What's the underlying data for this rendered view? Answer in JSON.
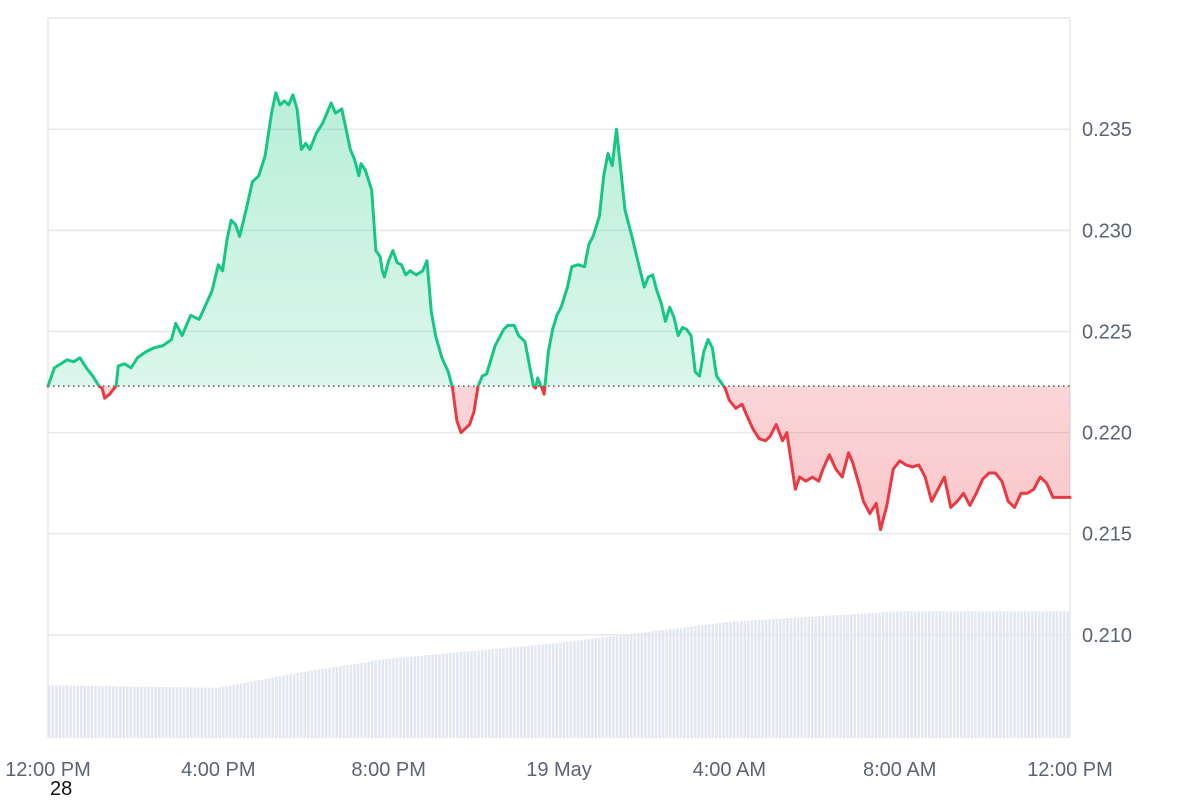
{
  "chart_data": {
    "type": "area",
    "title": "",
    "xlabel": "",
    "ylabel": "",
    "baseline": 0.2223,
    "ylim": [
      0.2049,
      0.2405
    ],
    "y_ticks": [
      0.235,
      0.23,
      0.225,
      0.22,
      0.215,
      0.21
    ],
    "y_tick_labels": [
      "0.235",
      "0.230",
      "0.225",
      "0.220",
      "0.215",
      "0.210"
    ],
    "x_range_hours": [
      0,
      24
    ],
    "x_ticks": [
      {
        "hour": 0,
        "label": "12:00 PM"
      },
      {
        "hour": 4,
        "label": "4:00 PM"
      },
      {
        "hour": 8,
        "label": "8:00 PM"
      },
      {
        "hour": 12,
        "label": "19 May"
      },
      {
        "hour": 16,
        "label": "4:00 AM"
      },
      {
        "hour": 20,
        "label": "8:00 AM"
      },
      {
        "hour": 24,
        "label": "12:00 PM"
      }
    ],
    "start_day_label": "28",
    "colors": {
      "up_line": "#16c784",
      "up_fill": "#16c784",
      "down_line": "#ea3943",
      "down_fill": "#ea3943",
      "baseline": "#555555",
      "grid": "#e6e8ec",
      "volume": "#e3e8ef"
    },
    "series": [
      {
        "values": [
          [
            0.0,
            0.2223
          ],
          [
            0.15,
            0.2232
          ],
          [
            0.3,
            0.2234
          ],
          [
            0.45,
            0.2236
          ],
          [
            0.6,
            0.2235
          ],
          [
            0.75,
            0.2237
          ],
          [
            0.9,
            0.2232
          ],
          [
            1.05,
            0.2228
          ],
          [
            1.2,
            0.2223
          ],
          [
            1.27,
            0.2222
          ],
          [
            1.33,
            0.2217
          ],
          [
            1.45,
            0.2219
          ],
          [
            1.52,
            0.2221
          ],
          [
            1.6,
            0.2223
          ],
          [
            1.65,
            0.2233
          ],
          [
            1.8,
            0.2234
          ],
          [
            1.95,
            0.2232
          ],
          [
            2.1,
            0.2237
          ],
          [
            2.3,
            0.224
          ],
          [
            2.5,
            0.2242
          ],
          [
            2.7,
            0.2243
          ],
          [
            2.9,
            0.2246
          ],
          [
            3.0,
            0.2254
          ],
          [
            3.15,
            0.2248
          ],
          [
            3.35,
            0.2258
          ],
          [
            3.55,
            0.2256
          ],
          [
            3.7,
            0.2263
          ],
          [
            3.85,
            0.227
          ],
          [
            4.0,
            0.2283
          ],
          [
            4.1,
            0.228
          ],
          [
            4.2,
            0.2295
          ],
          [
            4.3,
            0.2305
          ],
          [
            4.4,
            0.2303
          ],
          [
            4.5,
            0.2297
          ],
          [
            4.65,
            0.231
          ],
          [
            4.8,
            0.2324
          ],
          [
            4.95,
            0.2327
          ],
          [
            5.1,
            0.2337
          ],
          [
            5.25,
            0.2358
          ],
          [
            5.35,
            0.2368
          ],
          [
            5.45,
            0.2362
          ],
          [
            5.55,
            0.2364
          ],
          [
            5.65,
            0.2362
          ],
          [
            5.75,
            0.2367
          ],
          [
            5.85,
            0.236
          ],
          [
            5.95,
            0.234
          ],
          [
            6.05,
            0.2343
          ],
          [
            6.15,
            0.234
          ],
          [
            6.3,
            0.2348
          ],
          [
            6.45,
            0.2353
          ],
          [
            6.55,
            0.2358
          ],
          [
            6.65,
            0.2363
          ],
          [
            6.75,
            0.2358
          ],
          [
            6.9,
            0.236
          ],
          [
            7.0,
            0.235
          ],
          [
            7.1,
            0.234
          ],
          [
            7.2,
            0.2335
          ],
          [
            7.3,
            0.2327
          ],
          [
            7.35,
            0.2333
          ],
          [
            7.45,
            0.233
          ],
          [
            7.6,
            0.232
          ],
          [
            7.7,
            0.229
          ],
          [
            7.8,
            0.2287
          ],
          [
            7.85,
            0.228
          ],
          [
            7.9,
            0.2277
          ],
          [
            8.0,
            0.2285
          ],
          [
            8.1,
            0.229
          ],
          [
            8.2,
            0.2284
          ],
          [
            8.3,
            0.2283
          ],
          [
            8.4,
            0.2278
          ],
          [
            8.5,
            0.228
          ],
          [
            8.65,
            0.2278
          ],
          [
            8.8,
            0.228
          ],
          [
            8.9,
            0.2285
          ],
          [
            9.0,
            0.226
          ],
          [
            9.1,
            0.2248
          ],
          [
            9.25,
            0.2237
          ],
          [
            9.4,
            0.223
          ],
          [
            9.5,
            0.2222
          ],
          [
            9.6,
            0.2206
          ],
          [
            9.7,
            0.22
          ],
          [
            9.8,
            0.2202
          ],
          [
            9.9,
            0.2204
          ],
          [
            10.0,
            0.221
          ],
          [
            10.1,
            0.2223
          ],
          [
            10.2,
            0.2228
          ],
          [
            10.3,
            0.2229
          ],
          [
            10.4,
            0.2236
          ],
          [
            10.5,
            0.2243
          ],
          [
            10.6,
            0.2247
          ],
          [
            10.7,
            0.2251
          ],
          [
            10.8,
            0.2253
          ],
          [
            10.95,
            0.2253
          ],
          [
            11.05,
            0.2248
          ],
          [
            11.2,
            0.2245
          ],
          [
            11.3,
            0.2234
          ],
          [
            11.4,
            0.2223
          ],
          [
            11.45,
            0.2222
          ],
          [
            11.5,
            0.2227
          ],
          [
            11.6,
            0.2222
          ],
          [
            11.65,
            0.2219
          ],
          [
            11.75,
            0.224
          ],
          [
            11.85,
            0.2251
          ],
          [
            11.95,
            0.2258
          ],
          [
            12.05,
            0.2262
          ],
          [
            12.2,
            0.2272
          ],
          [
            12.3,
            0.2282
          ],
          [
            12.45,
            0.2283
          ],
          [
            12.6,
            0.2282
          ],
          [
            12.7,
            0.2293
          ],
          [
            12.8,
            0.2297
          ],
          [
            12.95,
            0.2307
          ],
          [
            13.05,
            0.2327
          ],
          [
            13.15,
            0.2338
          ],
          [
            13.25,
            0.2332
          ],
          [
            13.35,
            0.235
          ],
          [
            13.45,
            0.233
          ],
          [
            13.55,
            0.231
          ],
          [
            13.7,
            0.2298
          ],
          [
            13.85,
            0.2285
          ],
          [
            14.0,
            0.2272
          ],
          [
            14.1,
            0.2277
          ],
          [
            14.2,
            0.2278
          ],
          [
            14.3,
            0.227
          ],
          [
            14.4,
            0.2264
          ],
          [
            14.5,
            0.2255
          ],
          [
            14.6,
            0.2262
          ],
          [
            14.7,
            0.2257
          ],
          [
            14.8,
            0.2248
          ],
          [
            14.9,
            0.2252
          ],
          [
            15.0,
            0.2251
          ],
          [
            15.1,
            0.2248
          ],
          [
            15.2,
            0.223
          ],
          [
            15.3,
            0.2228
          ],
          [
            15.4,
            0.224
          ],
          [
            15.5,
            0.2246
          ],
          [
            15.6,
            0.2242
          ],
          [
            15.7,
            0.2228
          ],
          [
            15.8,
            0.2225
          ],
          [
            15.9,
            0.2222
          ],
          [
            16.0,
            0.2216
          ],
          [
            16.15,
            0.2212
          ],
          [
            16.3,
            0.2214
          ],
          [
            16.4,
            0.2209
          ],
          [
            16.55,
            0.2202
          ],
          [
            16.7,
            0.2197
          ],
          [
            16.85,
            0.2196
          ],
          [
            16.95,
            0.2198
          ],
          [
            17.1,
            0.2204
          ],
          [
            17.25,
            0.2196
          ],
          [
            17.35,
            0.22
          ],
          [
            17.45,
            0.2186
          ],
          [
            17.55,
            0.2172
          ],
          [
            17.65,
            0.2178
          ],
          [
            17.8,
            0.2176
          ],
          [
            17.95,
            0.2178
          ],
          [
            18.1,
            0.2176
          ],
          [
            18.2,
            0.2182
          ],
          [
            18.35,
            0.2189
          ],
          [
            18.5,
            0.2182
          ],
          [
            18.65,
            0.2178
          ],
          [
            18.8,
            0.219
          ],
          [
            18.9,
            0.2185
          ],
          [
            19.05,
            0.2174
          ],
          [
            19.15,
            0.2166
          ],
          [
            19.3,
            0.216
          ],
          [
            19.45,
            0.2165
          ],
          [
            19.55,
            0.2152
          ],
          [
            19.7,
            0.2164
          ],
          [
            19.85,
            0.2182
          ],
          [
            20.0,
            0.2186
          ],
          [
            20.15,
            0.2184
          ],
          [
            20.3,
            0.2183
          ],
          [
            20.45,
            0.2184
          ],
          [
            20.6,
            0.2178
          ],
          [
            20.75,
            0.2166
          ],
          [
            20.9,
            0.2172
          ],
          [
            21.05,
            0.2178
          ],
          [
            21.2,
            0.2163
          ],
          [
            21.35,
            0.2166
          ],
          [
            21.5,
            0.217
          ],
          [
            21.65,
            0.2164
          ],
          [
            21.8,
            0.217
          ],
          [
            21.95,
            0.2177
          ],
          [
            22.1,
            0.218
          ],
          [
            22.25,
            0.218
          ],
          [
            22.4,
            0.2176
          ],
          [
            22.55,
            0.2166
          ],
          [
            22.7,
            0.2163
          ],
          [
            22.85,
            0.217
          ],
          [
            23.0,
            0.217
          ],
          [
            23.15,
            0.2172
          ],
          [
            23.3,
            0.2178
          ],
          [
            23.45,
            0.2175
          ],
          [
            23.6,
            0.2168
          ],
          [
            23.7,
            0.2168
          ],
          [
            24.0,
            0.2168
          ]
        ]
      }
    ],
    "volume_relative": [
      [
        0,
        0.2
      ],
      [
        4,
        0.19
      ],
      [
        6,
        0.25
      ],
      [
        8,
        0.3
      ],
      [
        10,
        0.33
      ],
      [
        12,
        0.36
      ],
      [
        14,
        0.4
      ],
      [
        16,
        0.44
      ],
      [
        18,
        0.46
      ],
      [
        20,
        0.48
      ],
      [
        22,
        0.48
      ],
      [
        24,
        0.48
      ]
    ]
  }
}
